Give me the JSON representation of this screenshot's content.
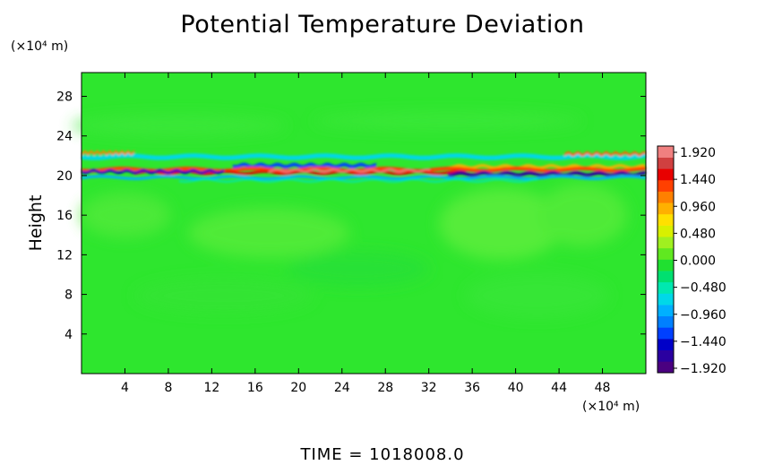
{
  "chart_data": {
    "type": "heatmap",
    "title": "Potential Temperature Deviation",
    "ylabel": "Height",
    "yunit": "(×10⁴ m)",
    "xunit": "(×10⁴ m)",
    "footer": "TIME  =  1018008.0",
    "xlim": [
      0,
      52
    ],
    "ylim": [
      0,
      30.4
    ],
    "x_ticks": [
      4,
      8,
      12,
      16,
      20,
      24,
      28,
      32,
      36,
      40,
      44,
      48
    ],
    "y_ticks": [
      4,
      8,
      12,
      16,
      20,
      24,
      28
    ],
    "colorbar": {
      "range": [
        -1.92,
        1.92
      ],
      "labels": [
        "1.920",
        "1.440",
        "0.960",
        "0.480",
        "0.000",
        "−0.480",
        "−0.960",
        "−1.440",
        "−1.920"
      ],
      "colors": [
        "#4a0080",
        "#2a00a0",
        "#0000c8",
        "#0040ff",
        "#0080ff",
        "#00b0ff",
        "#00d8e8",
        "#00e8b0",
        "#00e070",
        "#20e030",
        "#60e820",
        "#a0f020",
        "#d8f000",
        "#ffe000",
        "#ffb000",
        "#ff8000",
        "#ff4000",
        "#e80000",
        "#d04040",
        "#f08080"
      ]
    },
    "background_color": "#2ee62e"
  }
}
